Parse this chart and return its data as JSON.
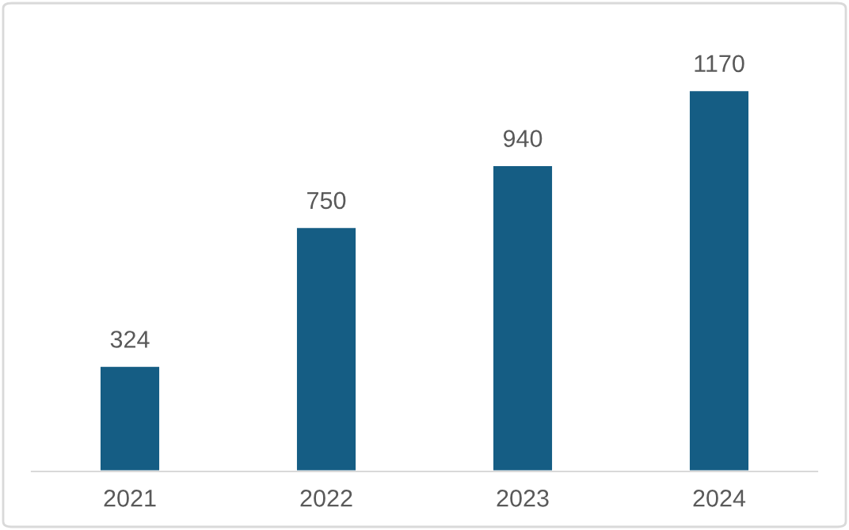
{
  "chart_data": {
    "type": "bar",
    "categories": [
      "2021",
      "2022",
      "2023",
      "2024"
    ],
    "values": [
      324,
      750,
      940,
      1170
    ],
    "color": "#155d84",
    "data_labels": true,
    "grid": false,
    "legend": false
  }
}
